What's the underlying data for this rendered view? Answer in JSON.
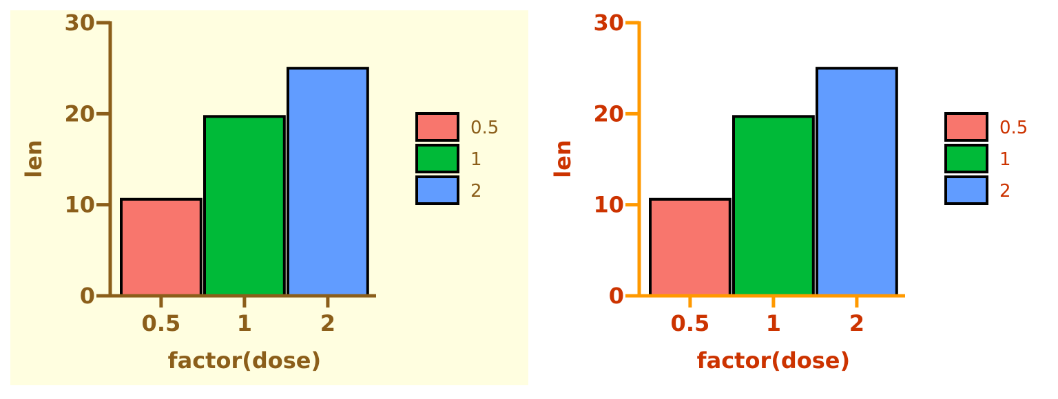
{
  "chart_data": [
    {
      "type": "bar",
      "categories": [
        "0.5",
        "1",
        "2"
      ],
      "values": [
        10.6,
        19.7,
        25.0
      ],
      "xlabel": "factor(dose)",
      "ylabel": "len",
      "ylim": [
        0,
        30
      ],
      "yticks": [
        "0",
        "10",
        "20",
        "30"
      ],
      "legend": {
        "position": "right",
        "entries": [
          "0.5",
          "1",
          "2"
        ]
      },
      "colors": {
        "bars": [
          "#F8766D",
          "#00BA38",
          "#619CFF"
        ],
        "background": "#FFFEE0",
        "axis_line": "#8B5E1A",
        "text": "#8B5E1A"
      }
    },
    {
      "type": "bar",
      "categories": [
        "0.5",
        "1",
        "2"
      ],
      "values": [
        10.6,
        19.7,
        25.0
      ],
      "xlabel": "factor(dose)",
      "ylabel": "len",
      "ylim": [
        0,
        30
      ],
      "yticks": [
        "0",
        "10",
        "20",
        "30"
      ],
      "legend": {
        "position": "right",
        "entries": [
          "0.5",
          "1",
          "2"
        ]
      },
      "colors": {
        "bars": [
          "#F8766D",
          "#00BA38",
          "#619CFF"
        ],
        "background": "#FFFFFF",
        "axis_line": "#FF9900",
        "text": "#CC3300"
      }
    }
  ]
}
